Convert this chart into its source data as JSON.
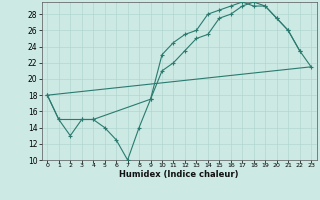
{
  "xlabel": "Humidex (Indice chaleur)",
  "xlim": [
    -0.5,
    23.5
  ],
  "ylim": [
    10,
    29.5
  ],
  "yticks": [
    10,
    12,
    14,
    16,
    18,
    20,
    22,
    24,
    26,
    28
  ],
  "xticks": [
    0,
    1,
    2,
    3,
    4,
    5,
    6,
    7,
    8,
    9,
    10,
    11,
    12,
    13,
    14,
    15,
    16,
    17,
    18,
    19,
    20,
    21,
    22,
    23
  ],
  "background_color": "#cce9e3",
  "grid_color": "#aad4cc",
  "line_color": "#2a7a70",
  "line1_x": [
    0,
    1,
    2,
    3,
    4,
    5,
    6,
    7,
    8,
    9,
    10,
    11,
    12,
    13,
    14,
    15,
    16,
    17,
    18,
    19,
    20,
    21,
    22
  ],
  "line1_y": [
    18,
    15,
    13,
    15,
    15,
    14,
    12.5,
    10,
    14,
    17.5,
    23,
    24.5,
    25.5,
    26,
    28,
    28.5,
    29,
    29.5,
    29,
    29,
    27.5,
    26,
    23.5
  ],
  "line2_x": [
    0,
    1,
    3,
    4,
    9,
    10,
    11,
    12,
    13,
    14,
    15,
    16,
    17,
    18,
    19,
    20,
    21,
    22,
    23
  ],
  "line2_y": [
    18,
    15,
    15,
    15,
    17.5,
    21,
    22,
    23.5,
    25,
    25.5,
    27.5,
    28,
    29,
    29.5,
    29,
    27.5,
    26,
    23.5,
    21.5
  ],
  "line3_x": [
    0,
    23
  ],
  "line3_y": [
    18,
    21.5
  ]
}
